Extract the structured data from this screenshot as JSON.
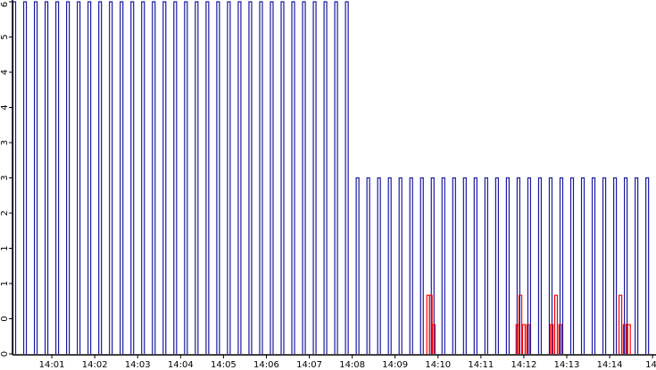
{
  "chart_data": {
    "type": "pulse",
    "xlim": [
      0.083,
      15.08
    ],
    "ylim": [
      0,
      6
    ],
    "xticks": [
      {
        "value": 1,
        "label": "14:01"
      },
      {
        "value": 2,
        "label": "14:02"
      },
      {
        "value": 3,
        "label": "14:03"
      },
      {
        "value": 4,
        "label": "14:04"
      },
      {
        "value": 5,
        "label": "14:05"
      },
      {
        "value": 6,
        "label": "14:06"
      },
      {
        "value": 7,
        "label": "14:07"
      },
      {
        "value": 8,
        "label": "14:08"
      },
      {
        "value": 9,
        "label": "14:09"
      },
      {
        "value": 10,
        "label": "14:10"
      },
      {
        "value": 11,
        "label": "14:11"
      },
      {
        "value": 12,
        "label": "14:12"
      },
      {
        "value": 13,
        "label": "14:13"
      },
      {
        "value": 14,
        "label": "14:14"
      },
      {
        "value": 15,
        "label": "14:"
      }
    ],
    "yticks": [
      {
        "value": 0,
        "label": "0"
      },
      {
        "value": 0.6,
        "label": "0"
      },
      {
        "value": 1.2,
        "label": "1"
      },
      {
        "value": 1.8,
        "label": "1"
      },
      {
        "value": 2.4,
        "label": "2"
      },
      {
        "value": 3,
        "label": "3"
      },
      {
        "value": 3.6,
        "label": "3"
      },
      {
        "value": 4.2,
        "label": "4"
      },
      {
        "value": 4.8,
        "label": "4"
      },
      {
        "value": 5.4,
        "label": "5"
      },
      {
        "value": 6,
        "label": "6"
      }
    ],
    "series": [
      {
        "color": "#1a1aa0",
        "x": [
          0.125,
          0.375,
          0.625,
          0.875,
          1.125,
          1.375,
          1.625,
          1.875,
          2.125,
          2.375,
          2.625,
          2.875,
          3.125,
          3.375,
          3.625,
          3.875,
          4.125,
          4.375,
          4.625,
          4.875,
          5.125,
          5.375,
          5.625,
          5.875,
          6.125,
          6.375,
          6.625,
          6.875,
          7.125,
          7.375,
          7.625,
          7.875,
          8.125,
          8.375,
          8.625,
          8.875,
          9.125,
          9.375,
          9.625,
          9.875,
          10.125,
          10.375,
          10.625,
          10.875,
          11.125,
          11.375,
          11.625,
          11.875,
          12.125,
          12.375,
          12.625,
          12.875,
          13.125,
          13.375,
          13.625,
          13.875,
          14.125,
          14.375,
          14.625,
          14.875
        ],
        "values": [
          6,
          6,
          6,
          6,
          6,
          6,
          6,
          6,
          6,
          6,
          6,
          6,
          6,
          6,
          6,
          6,
          6,
          6,
          6,
          6,
          6,
          6,
          6,
          6,
          6,
          6,
          6,
          6,
          6,
          6,
          6,
          6,
          3,
          3,
          3,
          3,
          3,
          3,
          3,
          3,
          3,
          3,
          3,
          3,
          3,
          3,
          3,
          3,
          3,
          3,
          3,
          3,
          3,
          3,
          3,
          3,
          3,
          3,
          3,
          3
        ]
      },
      {
        "color": "#ff0000",
        "x": [
          9.77,
          9.83,
          9.9,
          11.85,
          11.92,
          12.0,
          12.1,
          12.65,
          12.75,
          12.85,
          14.25,
          14.35,
          14.45
        ],
        "values": [
          1,
          1,
          0.5,
          0.5,
          1,
          0.5,
          0.5,
          0.5,
          1,
          0.5,
          1,
          0.5,
          0.5
        ]
      }
    ]
  }
}
